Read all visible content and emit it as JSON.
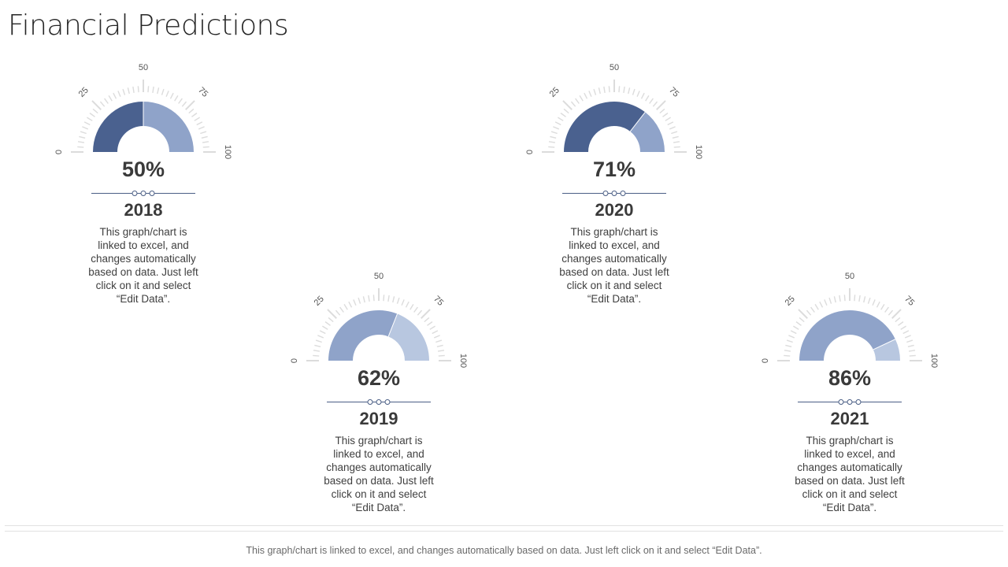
{
  "page": {
    "title": "Financial Predictions",
    "footer": "This graph/chart is linked to excel, and changes automatically based on data. Just left click on it and select “Edit Data”."
  },
  "colors": {
    "dark_fill": "#4a618f",
    "light_fill": "#8fa3c9",
    "lighter_fill": "#b8c7e0",
    "tick": "#dcdcdc",
    "tick_label": "#555555",
    "divider": "#4a5e85"
  },
  "chart_data": [
    {
      "type": "gauge",
      "year": "2018",
      "value_label": "50%",
      "value": 50,
      "scale_labels": [
        "0",
        "25",
        "50",
        "75",
        "100"
      ],
      "range": [
        0,
        100
      ],
      "fill_style": "dark",
      "description": "This graph/chart is linked to excel, and changes automatically based on data. Just left click on it and select “Edit Data”."
    },
    {
      "type": "gauge",
      "year": "2019",
      "value_label": "62%",
      "value": 62,
      "scale_labels": [
        "0",
        "25",
        "50",
        "75",
        "100"
      ],
      "range": [
        0,
        100
      ],
      "fill_style": "light",
      "description": "This graph/chart is linked to excel, and changes automatically based on data. Just left click on it and select “Edit Data”."
    },
    {
      "type": "gauge",
      "year": "2020",
      "value_label": "71%",
      "value": 71,
      "scale_labels": [
        "0",
        "25",
        "50",
        "75",
        "100"
      ],
      "range": [
        0,
        100
      ],
      "fill_style": "dark",
      "description": "This graph/chart is linked to excel, and changes automatically based on data. Just left click on it and select “Edit Data”."
    },
    {
      "type": "gauge",
      "year": "2021",
      "value_label": "86%",
      "value": 86,
      "scale_labels": [
        "0",
        "25",
        "50",
        "75",
        "100"
      ],
      "range": [
        0,
        100
      ],
      "fill_style": "light",
      "description": "This graph/chart is linked to excel, and changes automatically based on data. Just left click on it and select “Edit Data”."
    }
  ]
}
